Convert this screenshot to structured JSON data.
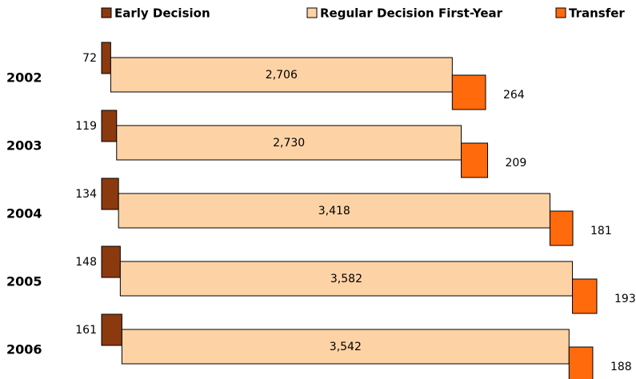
{
  "chart_data": {
    "type": "staggered-bar",
    "categories": [
      "2002",
      "2003",
      "2004",
      "2005",
      "2006"
    ],
    "series": [
      {
        "name": "Early Decision",
        "color": "#8b3a10",
        "values": [
          72,
          119,
          134,
          148,
          161
        ],
        "value_labels": [
          "72",
          "119",
          "134",
          "148",
          "161"
        ]
      },
      {
        "name": "Regular Decision First-Year",
        "color": "#fdd3a6",
        "values": [
          2706,
          2730,
          3418,
          3582,
          3542
        ],
        "value_labels": [
          "2,706",
          "2,730",
          "3,418",
          "3,582",
          "3,542"
        ]
      },
      {
        "name": "Transfer",
        "color": "#ff6a0d",
        "values": [
          264,
          209,
          181,
          193,
          188
        ],
        "value_labels": [
          "264",
          "209",
          "181",
          "193",
          "188"
        ]
      }
    ],
    "legend": "top"
  }
}
